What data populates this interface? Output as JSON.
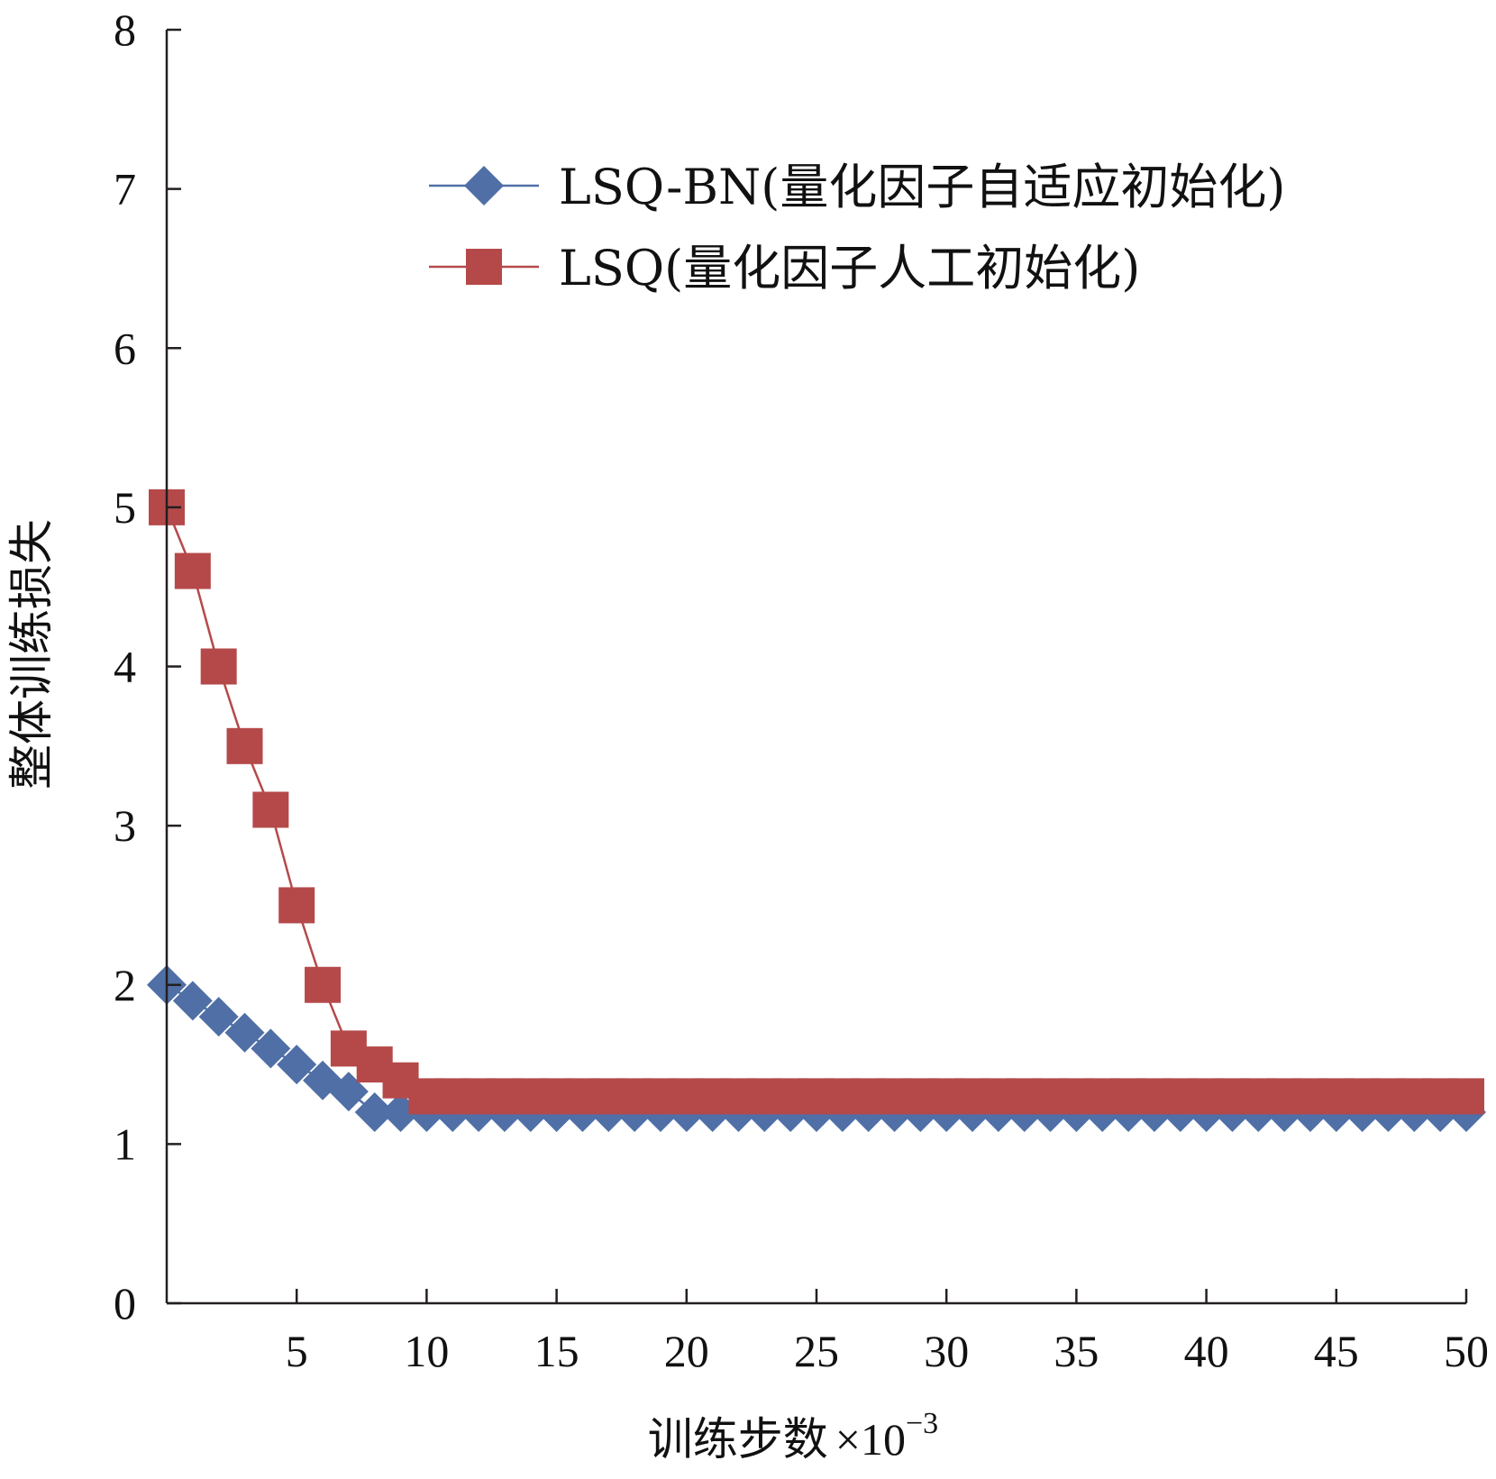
{
  "chart_data": {
    "type": "line",
    "title": "",
    "xlabel": "训练步数",
    "xlabel_suffix": "×10",
    "xlabel_exponent": "−3",
    "ylabel": "整体训练损失",
    "xlim": [
      0,
      50
    ],
    "ylim": [
      0,
      8
    ],
    "x_ticks": [
      5,
      10,
      15,
      20,
      25,
      30,
      35,
      40,
      45,
      50
    ],
    "y_ticks": [
      0,
      1,
      2,
      3,
      4,
      5,
      6,
      7,
      8
    ],
    "grid": false,
    "legend_position": "top-right",
    "series": [
      {
        "name": "LSQ-BN(量化因子自适应初始化)",
        "color": "#4f6fa6",
        "marker": "diamond",
        "x": [
          0,
          1,
          2,
          3,
          4,
          5,
          6,
          7,
          8,
          9,
          10,
          11,
          12,
          13,
          14,
          15,
          16,
          17,
          18,
          19,
          20,
          21,
          22,
          23,
          24,
          25,
          26,
          27,
          28,
          29,
          30,
          31,
          32,
          33,
          34,
          35,
          36,
          37,
          38,
          39,
          40,
          41,
          42,
          43,
          44,
          45,
          46,
          47,
          48,
          49,
          50
        ],
        "values": [
          2.0,
          1.9,
          1.8,
          1.7,
          1.6,
          1.5,
          1.4,
          1.33,
          1.2,
          1.2,
          1.2,
          1.2,
          1.2,
          1.2,
          1.2,
          1.2,
          1.2,
          1.2,
          1.2,
          1.2,
          1.2,
          1.2,
          1.2,
          1.2,
          1.2,
          1.2,
          1.2,
          1.2,
          1.2,
          1.2,
          1.2,
          1.2,
          1.2,
          1.2,
          1.2,
          1.2,
          1.2,
          1.2,
          1.2,
          1.2,
          1.2,
          1.2,
          1.2,
          1.2,
          1.2,
          1.2,
          1.2,
          1.2,
          1.2,
          1.2,
          1.2
        ]
      },
      {
        "name": "LSQ(量化因子人工初始化)",
        "color": "#b5494a",
        "marker": "square",
        "x": [
          0,
          1,
          2,
          3,
          4,
          5,
          6,
          7,
          8,
          9,
          10,
          11,
          12,
          13,
          14,
          15,
          16,
          17,
          18,
          19,
          20,
          21,
          22,
          23,
          24,
          25,
          26,
          27,
          28,
          29,
          30,
          31,
          32,
          33,
          34,
          35,
          36,
          37,
          38,
          39,
          40,
          41,
          42,
          43,
          44,
          45,
          46,
          47,
          48,
          49,
          50
        ],
        "values": [
          5.0,
          4.6,
          4.0,
          3.5,
          3.1,
          2.5,
          2.0,
          1.6,
          1.5,
          1.4,
          1.3,
          1.3,
          1.3,
          1.3,
          1.3,
          1.3,
          1.3,
          1.3,
          1.3,
          1.3,
          1.3,
          1.3,
          1.3,
          1.3,
          1.3,
          1.3,
          1.3,
          1.3,
          1.3,
          1.3,
          1.3,
          1.3,
          1.3,
          1.3,
          1.3,
          1.3,
          1.3,
          1.3,
          1.3,
          1.3,
          1.3,
          1.3,
          1.3,
          1.3,
          1.3,
          1.3,
          1.3,
          1.3,
          1.3,
          1.3,
          1.3
        ]
      }
    ]
  }
}
